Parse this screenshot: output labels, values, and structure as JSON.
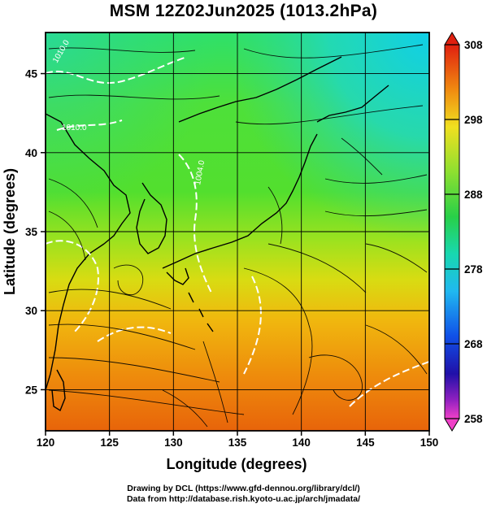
{
  "title": "MSM 12Z02Jun2025 (1013.2hPa)",
  "x_axis": {
    "label": "Longitude (degrees)",
    "range": [
      120,
      150
    ],
    "ticks": [
      "120",
      "125",
      "130",
      "135",
      "140",
      "145",
      "150"
    ]
  },
  "y_axis": {
    "label": "Latitude  (degrees)",
    "range": [
      22.4,
      47.6
    ],
    "ticks": [
      "25",
      "30",
      "35",
      "40",
      "45"
    ]
  },
  "colorbar": {
    "range": [
      258,
      308
    ],
    "ticks": [
      "308",
      "298",
      "288",
      "278",
      "268",
      "258"
    ]
  },
  "contour_labels": [
    "1010.0",
    "1010.0",
    "1004.0"
  ],
  "credits": {
    "line1": "Drawing by DCL (https://www.gfd-dennou.org/library/dcl/)",
    "line2": "Data from http://database.rish.kyoto-u.ac.jp/arch/jmadata/"
  },
  "colors": {
    "warm": "#e8780c",
    "mid": "#33d64a",
    "cool": "#15d6dc",
    "coastline": "#000000",
    "isobar": "#ffffff"
  }
}
